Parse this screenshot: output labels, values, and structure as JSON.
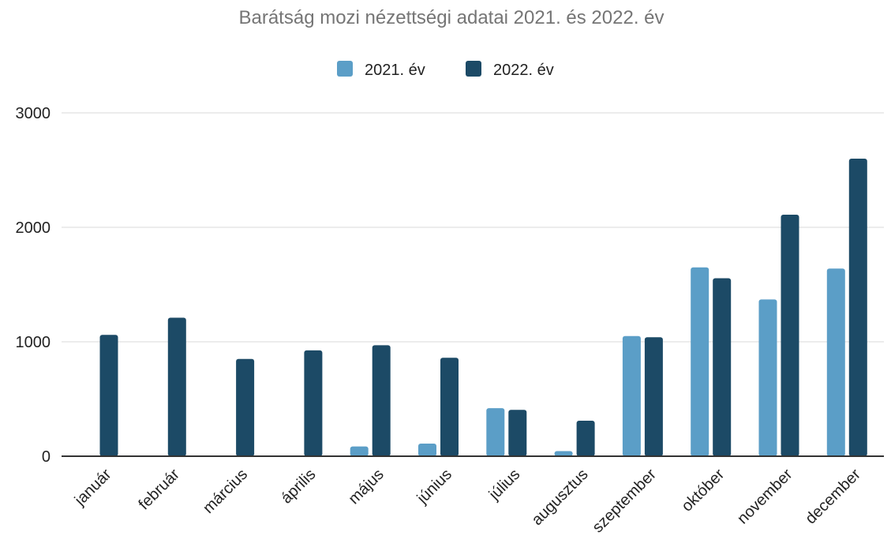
{
  "chart_data": {
    "type": "bar",
    "title": "Barátság mozi nézettségi adatai 2021. és 2022. év",
    "xlabel": "",
    "ylabel": "",
    "ylim": [
      0,
      3000
    ],
    "yticks": [
      0,
      1000,
      2000,
      3000
    ],
    "grid": true,
    "legend_position": "top",
    "categories": [
      "január",
      "február",
      "március",
      "április",
      "május",
      "június",
      "július",
      "augusztus",
      "szeptember",
      "október",
      "november",
      "december"
    ],
    "series": [
      {
        "name": "2021. év",
        "color": "#5b9ec7",
        "values": [
          0,
          0,
          0,
          0,
          85,
          110,
          420,
          45,
          1050,
          1650,
          1370,
          1640
        ]
      },
      {
        "name": "2022. év",
        "color": "#1c4a66",
        "values": [
          1060,
          1210,
          850,
          925,
          970,
          860,
          405,
          310,
          1040,
          1555,
          2110,
          2600
        ]
      }
    ]
  }
}
